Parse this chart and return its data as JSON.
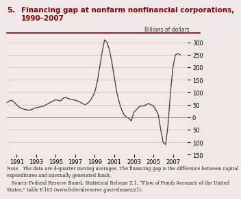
{
  "title_number": "5.",
  "title_text": "Financing gap at nonfarm nonfinancial corporations,\n1990–2007",
  "ylabel": "Billions of dollars",
  "xlim": [
    1990.0,
    2008.5
  ],
  "ylim": [
    -150,
    330
  ],
  "yticks": [
    -150,
    -100,
    -50,
    0,
    50,
    100,
    150,
    200,
    250,
    300
  ],
  "xticks": [
    1991,
    1993,
    1995,
    1997,
    1999,
    2001,
    2003,
    2005,
    2007
  ],
  "bg_color": "#f5e8e8",
  "line_color": "#3a3a3a",
  "note_text": "Note The data are 4-quarter moving averages. The financing gap is the difference between capital expenditures and internally generated funds.\n Source Federal Reserve Board, Statistical Release Z.1, “Flow of Funds Accounts of the United States,” table F.102 (www.federalreserve.gov/releases/z1).",
  "x": [
    1990.0,
    1990.25,
    1990.5,
    1990.75,
    1991.0,
    1991.25,
    1991.5,
    1991.75,
    1992.0,
    1992.25,
    1992.5,
    1992.75,
    1993.0,
    1993.25,
    1993.5,
    1993.75,
    1994.0,
    1994.25,
    1994.5,
    1994.75,
    1995.0,
    1995.25,
    1995.5,
    1995.75,
    1996.0,
    1996.25,
    1996.5,
    1996.75,
    1997.0,
    1997.25,
    1997.5,
    1997.75,
    1998.0,
    1998.25,
    1998.5,
    1998.75,
    1999.0,
    1999.25,
    1999.5,
    1999.75,
    2000.0,
    2000.25,
    2000.5,
    2000.75,
    2001.0,
    2001.25,
    2001.5,
    2001.75,
    2002.0,
    2002.25,
    2002.5,
    2002.75,
    2003.0,
    2003.25,
    2003.5,
    2003.75,
    2004.0,
    2004.25,
    2004.5,
    2004.75,
    2005.0,
    2005.25,
    2005.5,
    2005.75,
    2006.0,
    2006.25,
    2006.5,
    2006.75,
    2007.0,
    2007.25,
    2007.5,
    2007.75
  ],
  "y": [
    58,
    65,
    68,
    60,
    50,
    40,
    35,
    32,
    30,
    28,
    30,
    35,
    38,
    40,
    42,
    44,
    50,
    55,
    60,
    65,
    70,
    68,
    65,
    75,
    80,
    75,
    72,
    70,
    68,
    65,
    60,
    55,
    50,
    55,
    65,
    80,
    100,
    140,
    200,
    260,
    310,
    300,
    270,
    220,
    160,
    100,
    60,
    30,
    10,
    0,
    -5,
    -15,
    20,
    30,
    40,
    45,
    45,
    50,
    55,
    50,
    45,
    30,
    10,
    -50,
    -100,
    -110,
    -30,
    100,
    200,
    250,
    255,
    250
  ]
}
